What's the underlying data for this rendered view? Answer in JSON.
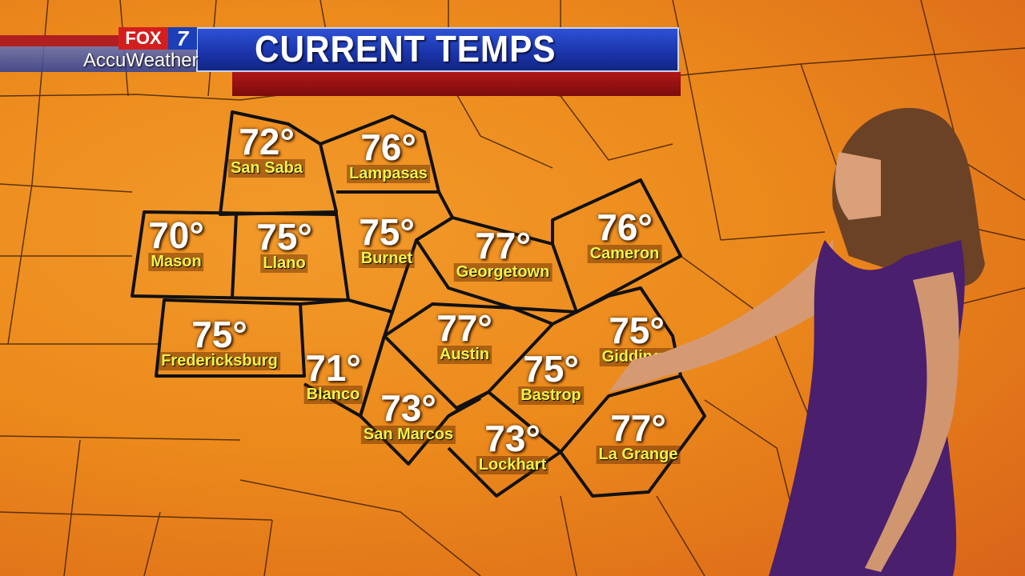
{
  "header": {
    "title": "CURRENT TEMPS",
    "brand_station": "FOX",
    "brand_channel": "7",
    "brand_weather": "AccuWeather"
  },
  "colors": {
    "map_fill": "#ec8a1c",
    "banner_blue": "#1a33a8",
    "banner_red": "#9c1212",
    "label_yellow": "#f2f24a"
  },
  "cities": [
    {
      "name": "San Saba",
      "temp": "72°"
    },
    {
      "name": "Lampasas",
      "temp": "76°"
    },
    {
      "name": "Mason",
      "temp": "70°"
    },
    {
      "name": "Llano",
      "temp": "75°"
    },
    {
      "name": "Burnet",
      "temp": "75°"
    },
    {
      "name": "Georgetown",
      "temp": "77°"
    },
    {
      "name": "Cameron",
      "temp": "76°"
    },
    {
      "name": "Fredericksburg",
      "temp": "75°"
    },
    {
      "name": "Blanco",
      "temp": "71°"
    },
    {
      "name": "Austin",
      "temp": "77°"
    },
    {
      "name": "Giddings",
      "temp": "75°"
    },
    {
      "name": "Bastrop",
      "temp": "75°"
    },
    {
      "name": "San Marcos",
      "temp": "73°"
    },
    {
      "name": "Lockhart",
      "temp": "73°"
    },
    {
      "name": "La Grange",
      "temp": "77°"
    }
  ]
}
